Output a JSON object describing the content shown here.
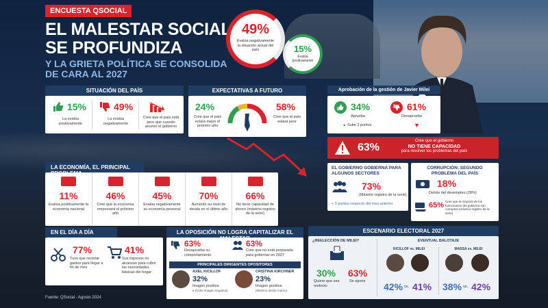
{
  "tag": "ENCUESTA QSOCIAL",
  "title": [
    "EL MALESTAR SOCIAL",
    "SE PROFUNDIZA"
  ],
  "subtitle": [
    "Y LA GRIETA POLÍTICA SE CONSOLIDA",
    "DE CARA AL 2027"
  ],
  "hero": {
    "neg_pct": "49%",
    "neg_text": "Evalúa negativamente la situación actual del país",
    "pos_pct": "15%",
    "pos_text": "Evalúa positivamente"
  },
  "situacion": {
    "title": "SITUACIÓN DEL PAÍS",
    "items": [
      {
        "pct": "15%",
        "text": "La evalúa positivamente"
      },
      {
        "pct": "49%",
        "text": "La evalúa negativamente"
      },
      {
        "pct": "",
        "text": "Cree que el país está peor que cuando asumió el gobierno"
      }
    ]
  },
  "expectativas": {
    "title": "EXPECTATIVAS A FUTURO",
    "left_pct": "24%",
    "left_text": "Cree que el país estará mejor el próximo año",
    "right_pct": "58%",
    "right_text": "Cree que el país estará peor"
  },
  "aprobacion": {
    "title": "Aprobación de la gestión de Javier Milei",
    "aprueba_pct": "34%",
    "aprueba": "Aprueba",
    "sube": "Sube 3 puntos",
    "desaprueba_pct": "61%",
    "desaprueba": "Desaprueba"
  },
  "capacidad": {
    "pct": "63%",
    "text1": "Cree que el gobierno",
    "text2": "NO TIENE CAPACIDAD",
    "text3": "para resolver los problemas del país"
  },
  "economia": {
    "title": "LA ECONOMÍA, EL PRINCIPAL PROBLEMA",
    "items": [
      {
        "pct": "11%",
        "text": "Evalúa positivamente la economía nacional"
      },
      {
        "pct": "46%",
        "text": "Cree que la economía empeorará el próximo año"
      },
      {
        "pct": "45%",
        "text": "Evalúa negativamente su economía personal"
      },
      {
        "pct": "70%",
        "text": "Aumentó su nivel de deuda en el último año"
      },
      {
        "pct": "66%",
        "text": "No tiene capacidad de ahorro (máximo registro de la serie)"
      }
    ]
  },
  "gobierna": {
    "title": "EL GOBIERNO GOBIERNA PARA ALGUNOS SECTORES",
    "pct": "73%",
    "note": "(Máximo registro de la serie)",
    "delta": "+ 5 puntos respecto del mes anterior"
  },
  "corrupcion": {
    "title": "CORRUPCIÓN: SEGUNDO PROBLEMA DEL PAÍS",
    "pct": "18%",
    "note": "Detrás del desempleo (28%)",
    "pct2": "65%",
    "note2": "Cree que la mayoría de los funcionarios del gobierno son corruptos (máximo registro de la serie)"
  },
  "dia": {
    "title": "EN EL DÍA A DÍA",
    "a_pct": "77%",
    "a_text": "Tuvo que recortar gastos para llegar a fin de mes",
    "b_pct": "41%",
    "b_text": "Sus ingresos no alcanzan para cubrir las necesidades básicas del hogar"
  },
  "oposicion": {
    "title": "LA OPOSICIÓN NO LOGRA CAPITALIZAR EL MALESTAR",
    "a_pct": "63%",
    "a_text": "Desaprueba su comportamiento",
    "b_pct": "63%",
    "b_text": "Cree que no está preparada para gobernar en 2027",
    "sub": "PRINCIPALES DIRIGENTES OPOSITORES",
    "p1_name": "AXEL KICILLOF",
    "p1_pct": "32%",
    "p1_text": "Imagen positiva",
    "p1_note": "(Sube imagen negativa)",
    "p2_name": "CRISTINA KIRCHNER",
    "p2_pct": "23%",
    "p2_text": "Imagen positiva",
    "p2_note": "(Máximo desde marzo)"
  },
  "escenario": {
    "title": "ESCENARIO ELECTORAL 2027",
    "q": "¿REELECCIÓN DE MILEI?",
    "si_pct": "30%",
    "si_text": "Quiere que sea reelecto",
    "no_pct": "63%",
    "no_text": "Se opone",
    "balotaje": "EVENTUAL BALOTAJE",
    "m1": "KICILLOF vs. MILEI",
    "m1a": "42%",
    "m1b": "41%",
    "m2": "MASSA vs. MILEI",
    "m2a": "38%",
    "m2b": "42%",
    "vs": "vs."
  },
  "source": "Fuente: QSocial - Agosto 2024",
  "colors": {
    "red": "#d8242a",
    "navy": "#1f3c63",
    "green": "#2e9e4f"
  }
}
